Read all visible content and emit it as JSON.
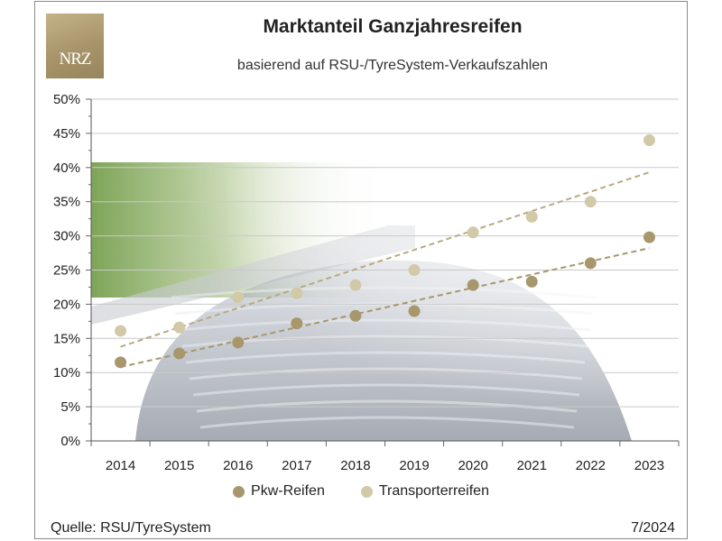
{
  "header": {
    "title": "Marktanteil Ganzjahresreifen",
    "subtitle": "basierend auf RSU-/TyreSystem-Verkaufszahlen",
    "logo_text": "NRZ"
  },
  "footer": {
    "source": "Quelle: RSU/TyreSystem",
    "date": "7/2024"
  },
  "chart_data": {
    "type": "scatter",
    "title": "Marktanteil Ganzjahresreifen",
    "subtitle": "basierend auf RSU-/TyreSystem-Verkaufszahlen",
    "categories": [
      "2014",
      "2015",
      "2016",
      "2017",
      "2018",
      "2019",
      "2020",
      "2021",
      "2022",
      "2023"
    ],
    "ylim": [
      0,
      50
    ],
    "y_ticks": [
      "0%",
      "5%",
      "10%",
      "15%",
      "20%",
      "25%",
      "30%",
      "35%",
      "40%",
      "45%",
      "50%"
    ],
    "grid": true,
    "legend_position": "bottom",
    "trendlines": true,
    "series": [
      {
        "name": "Pkw-Reifen",
        "color": "#a8976c",
        "values": [
          11.5,
          12.8,
          14.4,
          17.2,
          18.3,
          19.0,
          22.8,
          23.3,
          26.0,
          29.8
        ]
      },
      {
        "name": "Transporterreifen",
        "color": "#d2c9a8",
        "values": [
          16.1,
          16.6,
          21.0,
          21.6,
          22.8,
          25.0,
          30.5,
          32.8,
          35.0,
          44.0
        ]
      }
    ]
  }
}
